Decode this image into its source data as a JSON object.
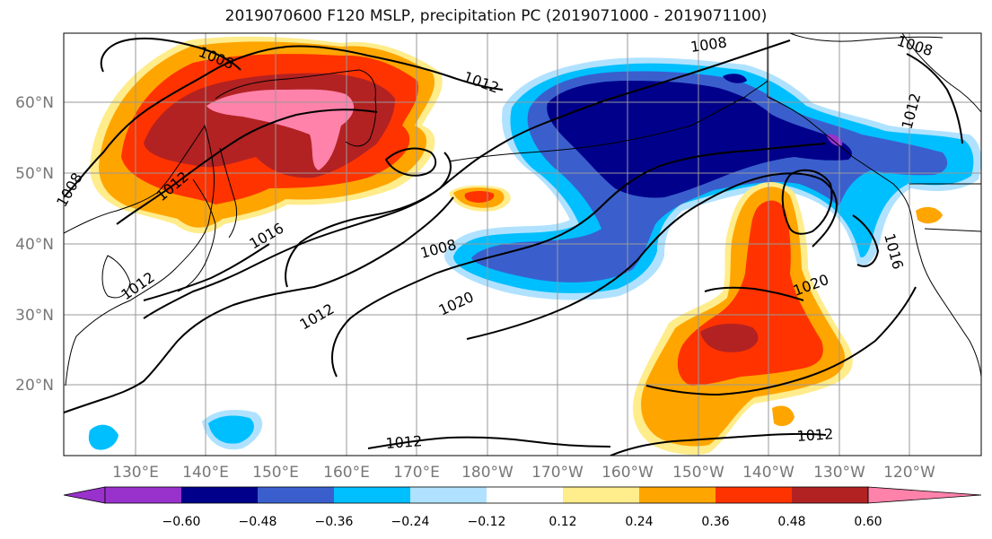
{
  "title": "2019070600 F120 MSLP, precipitation PC (2019071000 - 2019071100)",
  "map": {
    "lon_labels": [
      "130°E",
      "140°E",
      "150°E",
      "160°E",
      "170°E",
      "180°W",
      "170°W",
      "160°W",
      "150°W",
      "140°W",
      "130°W",
      "120°W"
    ],
    "lat_labels": [
      "60°N",
      "50°N",
      "40°N",
      "30°N",
      "20°N"
    ],
    "contour_labels": [
      "1008",
      "1012",
      "1008",
      "1012",
      "1016",
      "1008",
      "1012",
      "1020",
      "1012",
      "1008",
      "1012",
      "1016",
      "1020",
      "1012",
      "1012",
      "1008"
    ]
  },
  "colorbar": {
    "levels": [
      "−0.60",
      "−0.48",
      "−0.36",
      "−0.24",
      "−0.12",
      "0.12",
      "0.24",
      "0.36",
      "0.48",
      "0.60"
    ],
    "colors": [
      "#9932CC",
      "#00008B",
      "#3A5FCD",
      "#00BFFF",
      "#B0E2FF",
      "#FFFFFF",
      "#FFEC8B",
      "#FFA500",
      "#FF3300",
      "#B22222",
      "#FF82AB"
    ]
  }
}
